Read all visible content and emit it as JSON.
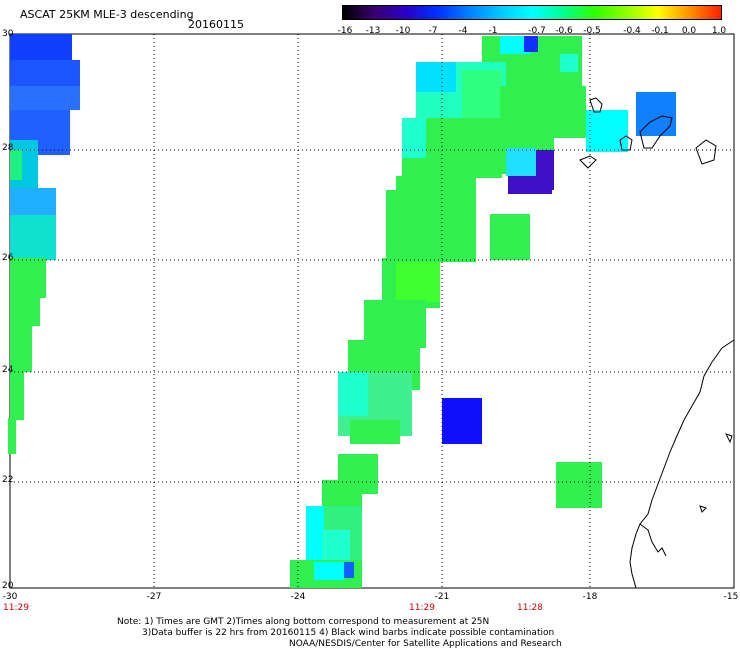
{
  "header": {
    "title": "ASCAT 25KM MLE-3 descending",
    "date": "20160115"
  },
  "colorbar": {
    "labels": [
      "-16",
      "-13",
      "-10",
      "-7",
      "-4",
      "-1",
      "-0.7",
      "-0.6",
      "-0.5",
      "-0.4",
      "-0.1",
      "0.0",
      "1.0"
    ],
    "colors": [
      "#000000",
      "#3a0070",
      "#2a00c8",
      "#0030ff",
      "#0080ff",
      "#00c8ff",
      "#00ffff",
      "#00ff90",
      "#30ff00",
      "#90ff00",
      "#ffff00",
      "#ff9000",
      "#ff2000"
    ]
  },
  "map": {
    "lon_labels": [
      "-30",
      "-27",
      "-24",
      "-21",
      "-18",
      "-15"
    ],
    "lat_labels": [
      "30",
      "28",
      "26",
      "24",
      "22",
      "20"
    ],
    "lon_range": [
      -30,
      -15
    ],
    "lat_range": [
      20,
      30
    ],
    "grid": true,
    "times": [
      "11:29",
      "11:29",
      "11:28"
    ]
  },
  "footer": {
    "note1": "Note: 1) Times are GMT 2)Times along bottom correspond to measurement at 25N",
    "note2": "3)Data buffer is 22 hrs from 20160115 4) Black wind barbs indicate possible contamination",
    "note3": "NOAA/NESDIS/Center for Satellite Applications and Research"
  }
}
